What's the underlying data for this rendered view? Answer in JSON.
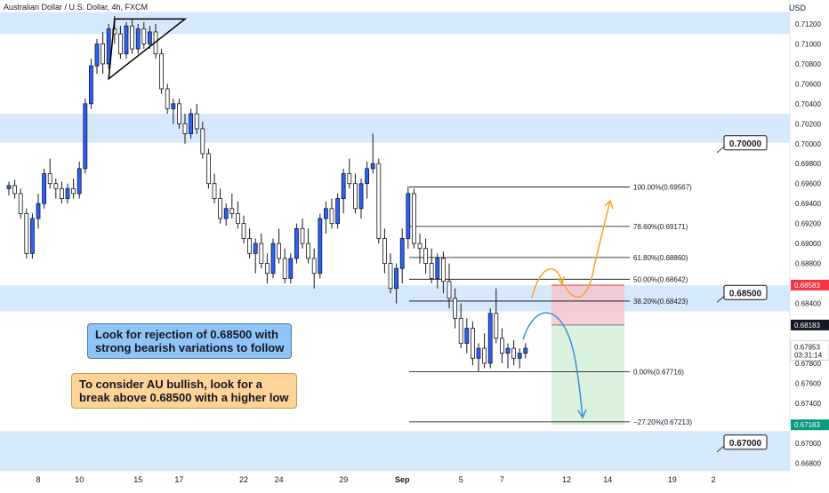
{
  "header": {
    "title": "Australian Dollar / U.S. Dollar, 4h, FXCM",
    "currency": "USD"
  },
  "annotations": {
    "note_bearish_line1": "Look for rejection of 0.68500 with",
    "note_bearish_line2": "strong bearish variations to follow",
    "note_bullish_line1": "To consider AU bullish, look for a",
    "note_bullish_line2": "break above 0.68500 with a higher low"
  },
  "colors": {
    "up_candle": "#2962ff",
    "down_candle": "#ffffff",
    "zone": "#d6e8fb",
    "fib_line": "#000000",
    "bullish_arrow": "#f5a623",
    "bearish_arrow": "#3d8fd6",
    "stop_box": "#f3c6cf",
    "target_box": "#d6efd9",
    "price_red": "#f23645",
    "price_green": "#089981",
    "price_black": "#131722"
  },
  "chart_data": {
    "type": "candlestick",
    "symbol": "AUDUSD",
    "timeframe": "4h",
    "ylim": [
      0.6674,
      0.7144
    ],
    "y_ticks": [
      "0.71200",
      "0.71000",
      "0.70800",
      "0.70600",
      "0.70400",
      "0.70200",
      "0.70000",
      "0.69800",
      "0.69600",
      "0.69400",
      "0.69200",
      "0.69000",
      "0.68800",
      "0.68600",
      "0.68400",
      "0.68200",
      "0.68000",
      "0.67800",
      "0.67600",
      "0.67400",
      "0.67200",
      "0.67000",
      "0.66800"
    ],
    "x_ticks": [
      {
        "label": "8",
        "bar": 5
      },
      {
        "label": "10",
        "bar": 12
      },
      {
        "label": "15",
        "bar": 22
      },
      {
        "label": "17",
        "bar": 29
      },
      {
        "label": "22",
        "bar": 40
      },
      {
        "label": "24",
        "bar": 46
      },
      {
        "label": "29",
        "bar": 57
      },
      {
        "label": "Sep",
        "bar": 67
      },
      {
        "label": "5",
        "bar": 77
      },
      {
        "label": "7",
        "bar": 84
      },
      {
        "label": "12",
        "bar": 95
      },
      {
        "label": "14",
        "bar": 102
      },
      {
        "label": "19",
        "bar": 113
      },
      {
        "label": "2",
        "bar": 120
      }
    ],
    "x_ticks_bold": [
      "Sep"
    ],
    "candles": [
      [
        0.6955,
        0.6962,
        0.6948,
        0.6958
      ],
      [
        0.6958,
        0.6964,
        0.6945,
        0.695
      ],
      [
        0.695,
        0.6955,
        0.6925,
        0.693
      ],
      [
        0.693,
        0.6935,
        0.6885,
        0.689
      ],
      [
        0.689,
        0.693,
        0.6885,
        0.6925
      ],
      [
        0.6925,
        0.695,
        0.6915,
        0.694
      ],
      [
        0.694,
        0.6975,
        0.6935,
        0.697
      ],
      [
        0.697,
        0.6985,
        0.6955,
        0.696
      ],
      [
        0.696,
        0.6965,
        0.6945,
        0.6955
      ],
      [
        0.6955,
        0.6962,
        0.694,
        0.6945
      ],
      [
        0.6945,
        0.696,
        0.694,
        0.6955
      ],
      [
        0.6955,
        0.6965,
        0.6945,
        0.695
      ],
      [
        0.695,
        0.6982,
        0.6945,
        0.6975
      ],
      [
        0.6975,
        0.7045,
        0.697,
        0.704
      ],
      [
        0.704,
        0.7085,
        0.7035,
        0.7078
      ],
      [
        0.7078,
        0.7105,
        0.707,
        0.71
      ],
      [
        0.71,
        0.7112,
        0.707,
        0.708
      ],
      [
        0.708,
        0.712,
        0.7075,
        0.7115
      ],
      [
        0.7115,
        0.7128,
        0.71,
        0.711
      ],
      [
        0.711,
        0.7118,
        0.7085,
        0.709
      ],
      [
        0.709,
        0.7122,
        0.7085,
        0.7118
      ],
      [
        0.7118,
        0.7125,
        0.709,
        0.7095
      ],
      [
        0.7095,
        0.712,
        0.709,
        0.7115
      ],
      [
        0.7115,
        0.7122,
        0.7095,
        0.71
      ],
      [
        0.71,
        0.7118,
        0.7095,
        0.7112
      ],
      [
        0.7112,
        0.712,
        0.7085,
        0.709
      ],
      [
        0.709,
        0.7095,
        0.705,
        0.7055
      ],
      [
        0.7055,
        0.706,
        0.703,
        0.7035
      ],
      [
        0.7035,
        0.7045,
        0.702,
        0.704
      ],
      [
        0.704,
        0.7045,
        0.7015,
        0.702
      ],
      [
        0.702,
        0.703,
        0.7,
        0.701
      ],
      [
        0.701,
        0.7035,
        0.7005,
        0.703
      ],
      [
        0.703,
        0.704,
        0.701,
        0.7015
      ],
      [
        0.7015,
        0.7022,
        0.6985,
        0.699
      ],
      [
        0.699,
        0.6995,
        0.6955,
        0.696
      ],
      [
        0.696,
        0.697,
        0.694,
        0.6945
      ],
      [
        0.6945,
        0.6955,
        0.692,
        0.6925
      ],
      [
        0.6925,
        0.694,
        0.6918,
        0.6935
      ],
      [
        0.6935,
        0.695,
        0.6925,
        0.693
      ],
      [
        0.693,
        0.6942,
        0.6915,
        0.692
      ],
      [
        0.692,
        0.6928,
        0.69,
        0.6905
      ],
      [
        0.6905,
        0.6915,
        0.6885,
        0.689
      ],
      [
        0.689,
        0.6905,
        0.687,
        0.69
      ],
      [
        0.69,
        0.691,
        0.6875,
        0.688
      ],
      [
        0.688,
        0.689,
        0.686,
        0.687
      ],
      [
        0.687,
        0.6905,
        0.6865,
        0.69
      ],
      [
        0.69,
        0.6915,
        0.688,
        0.6885
      ],
      [
        0.6885,
        0.6895,
        0.686,
        0.6865
      ],
      [
        0.6865,
        0.689,
        0.686,
        0.6885
      ],
      [
        0.6885,
        0.692,
        0.688,
        0.6915
      ],
      [
        0.6915,
        0.6925,
        0.6895,
        0.69
      ],
      [
        0.69,
        0.6915,
        0.688,
        0.6885
      ],
      [
        0.6885,
        0.6895,
        0.6855,
        0.687
      ],
      [
        0.687,
        0.693,
        0.6865,
        0.6925
      ],
      [
        0.6925,
        0.6942,
        0.691,
        0.6935
      ],
      [
        0.6935,
        0.6945,
        0.6915,
        0.692
      ],
      [
        0.692,
        0.695,
        0.6915,
        0.6945
      ],
      [
        0.6945,
        0.6975,
        0.693,
        0.697
      ],
      [
        0.697,
        0.6985,
        0.6955,
        0.696
      ],
      [
        0.696,
        0.697,
        0.693,
        0.6935
      ],
      [
        0.6935,
        0.6965,
        0.6925,
        0.696
      ],
      [
        0.696,
        0.6982,
        0.6945,
        0.6975
      ],
      [
        0.6975,
        0.701,
        0.697,
        0.698
      ],
      [
        0.698,
        0.6985,
        0.69,
        0.6905
      ],
      [
        0.6905,
        0.6915,
        0.687,
        0.688
      ],
      [
        0.688,
        0.689,
        0.685,
        0.6855
      ],
      [
        0.6855,
        0.688,
        0.684,
        0.6875
      ],
      [
        0.6875,
        0.6915,
        0.686,
        0.6905
      ],
      [
        0.6905,
        0.6957,
        0.6895,
        0.695
      ],
      [
        0.695,
        0.6955,
        0.6895,
        0.69
      ],
      [
        0.69,
        0.691,
        0.688,
        0.6895
      ],
      [
        0.6895,
        0.6905,
        0.687,
        0.688
      ],
      [
        0.688,
        0.6895,
        0.686,
        0.6865
      ],
      [
        0.6865,
        0.689,
        0.6855,
        0.6885
      ],
      [
        0.6885,
        0.6892,
        0.685,
        0.6862
      ],
      [
        0.6862,
        0.688,
        0.6835,
        0.6845
      ],
      [
        0.6845,
        0.6855,
        0.6815,
        0.6825
      ],
      [
        0.6825,
        0.684,
        0.6795,
        0.68
      ],
      [
        0.68,
        0.6825,
        0.679,
        0.6815
      ],
      [
        0.6815,
        0.6822,
        0.6778,
        0.6785
      ],
      [
        0.6785,
        0.68,
        0.6772,
        0.6795
      ],
      [
        0.6795,
        0.681,
        0.6775,
        0.678
      ],
      [
        0.678,
        0.6835,
        0.6775,
        0.683
      ],
      [
        0.683,
        0.6855,
        0.68,
        0.6805
      ],
      [
        0.6805,
        0.6815,
        0.678,
        0.679
      ],
      [
        0.679,
        0.68,
        0.6775,
        0.6795
      ],
      [
        0.6795,
        0.6803,
        0.6778,
        0.6785
      ],
      [
        0.6785,
        0.6795,
        0.6775,
        0.679
      ],
      [
        0.679,
        0.68,
        0.6785,
        0.6795
      ]
    ],
    "zones": [
      [
        0.711,
        0.7132
      ],
      [
        0.7001,
        0.703
      ],
      [
        0.6832,
        0.6858
      ],
      [
        0.6672,
        0.6712
      ]
    ],
    "fib_levels": [
      {
        "label": "100.00%(0.69567)",
        "value": 0.69567
      },
      {
        "label": "78.60%(0.69171)",
        "value": 0.69171
      },
      {
        "label": "61.80%(0.68860)",
        "value": 0.6886
      },
      {
        "label": "50.00%(0.68642)",
        "value": 0.68642
      },
      {
        "label": "38.20%(0.68423)",
        "value": 0.68423
      },
      {
        "label": "0.00%(0.67716)",
        "value": 0.67716
      },
      {
        "label": "−27.20%(0.67213)",
        "value": 0.67213
      }
    ],
    "level_callouts": [
      {
        "label": "0.70000",
        "value": 0.7
      },
      {
        "label": "0.68500",
        "value": 0.685
      },
      {
        "label": "0.67000",
        "value": 0.67
      }
    ],
    "price_tags": [
      {
        "label": "0.68583",
        "value": 0.68583,
        "style": "red"
      },
      {
        "label": "0.68183",
        "value": 0.68183,
        "style": "black"
      },
      {
        "label": "0.67183",
        "value": 0.67183,
        "style": "green"
      }
    ],
    "current_price": {
      "label": "0.67953",
      "countdown": "03:31:14",
      "value": 0.67953
    },
    "position": {
      "entry": 0.68183,
      "stop": 0.68583,
      "target": 0.67183
    },
    "triangle": {
      "apex_price": 0.7125,
      "top_price": 0.7125,
      "low_price": 0.7065
    }
  }
}
